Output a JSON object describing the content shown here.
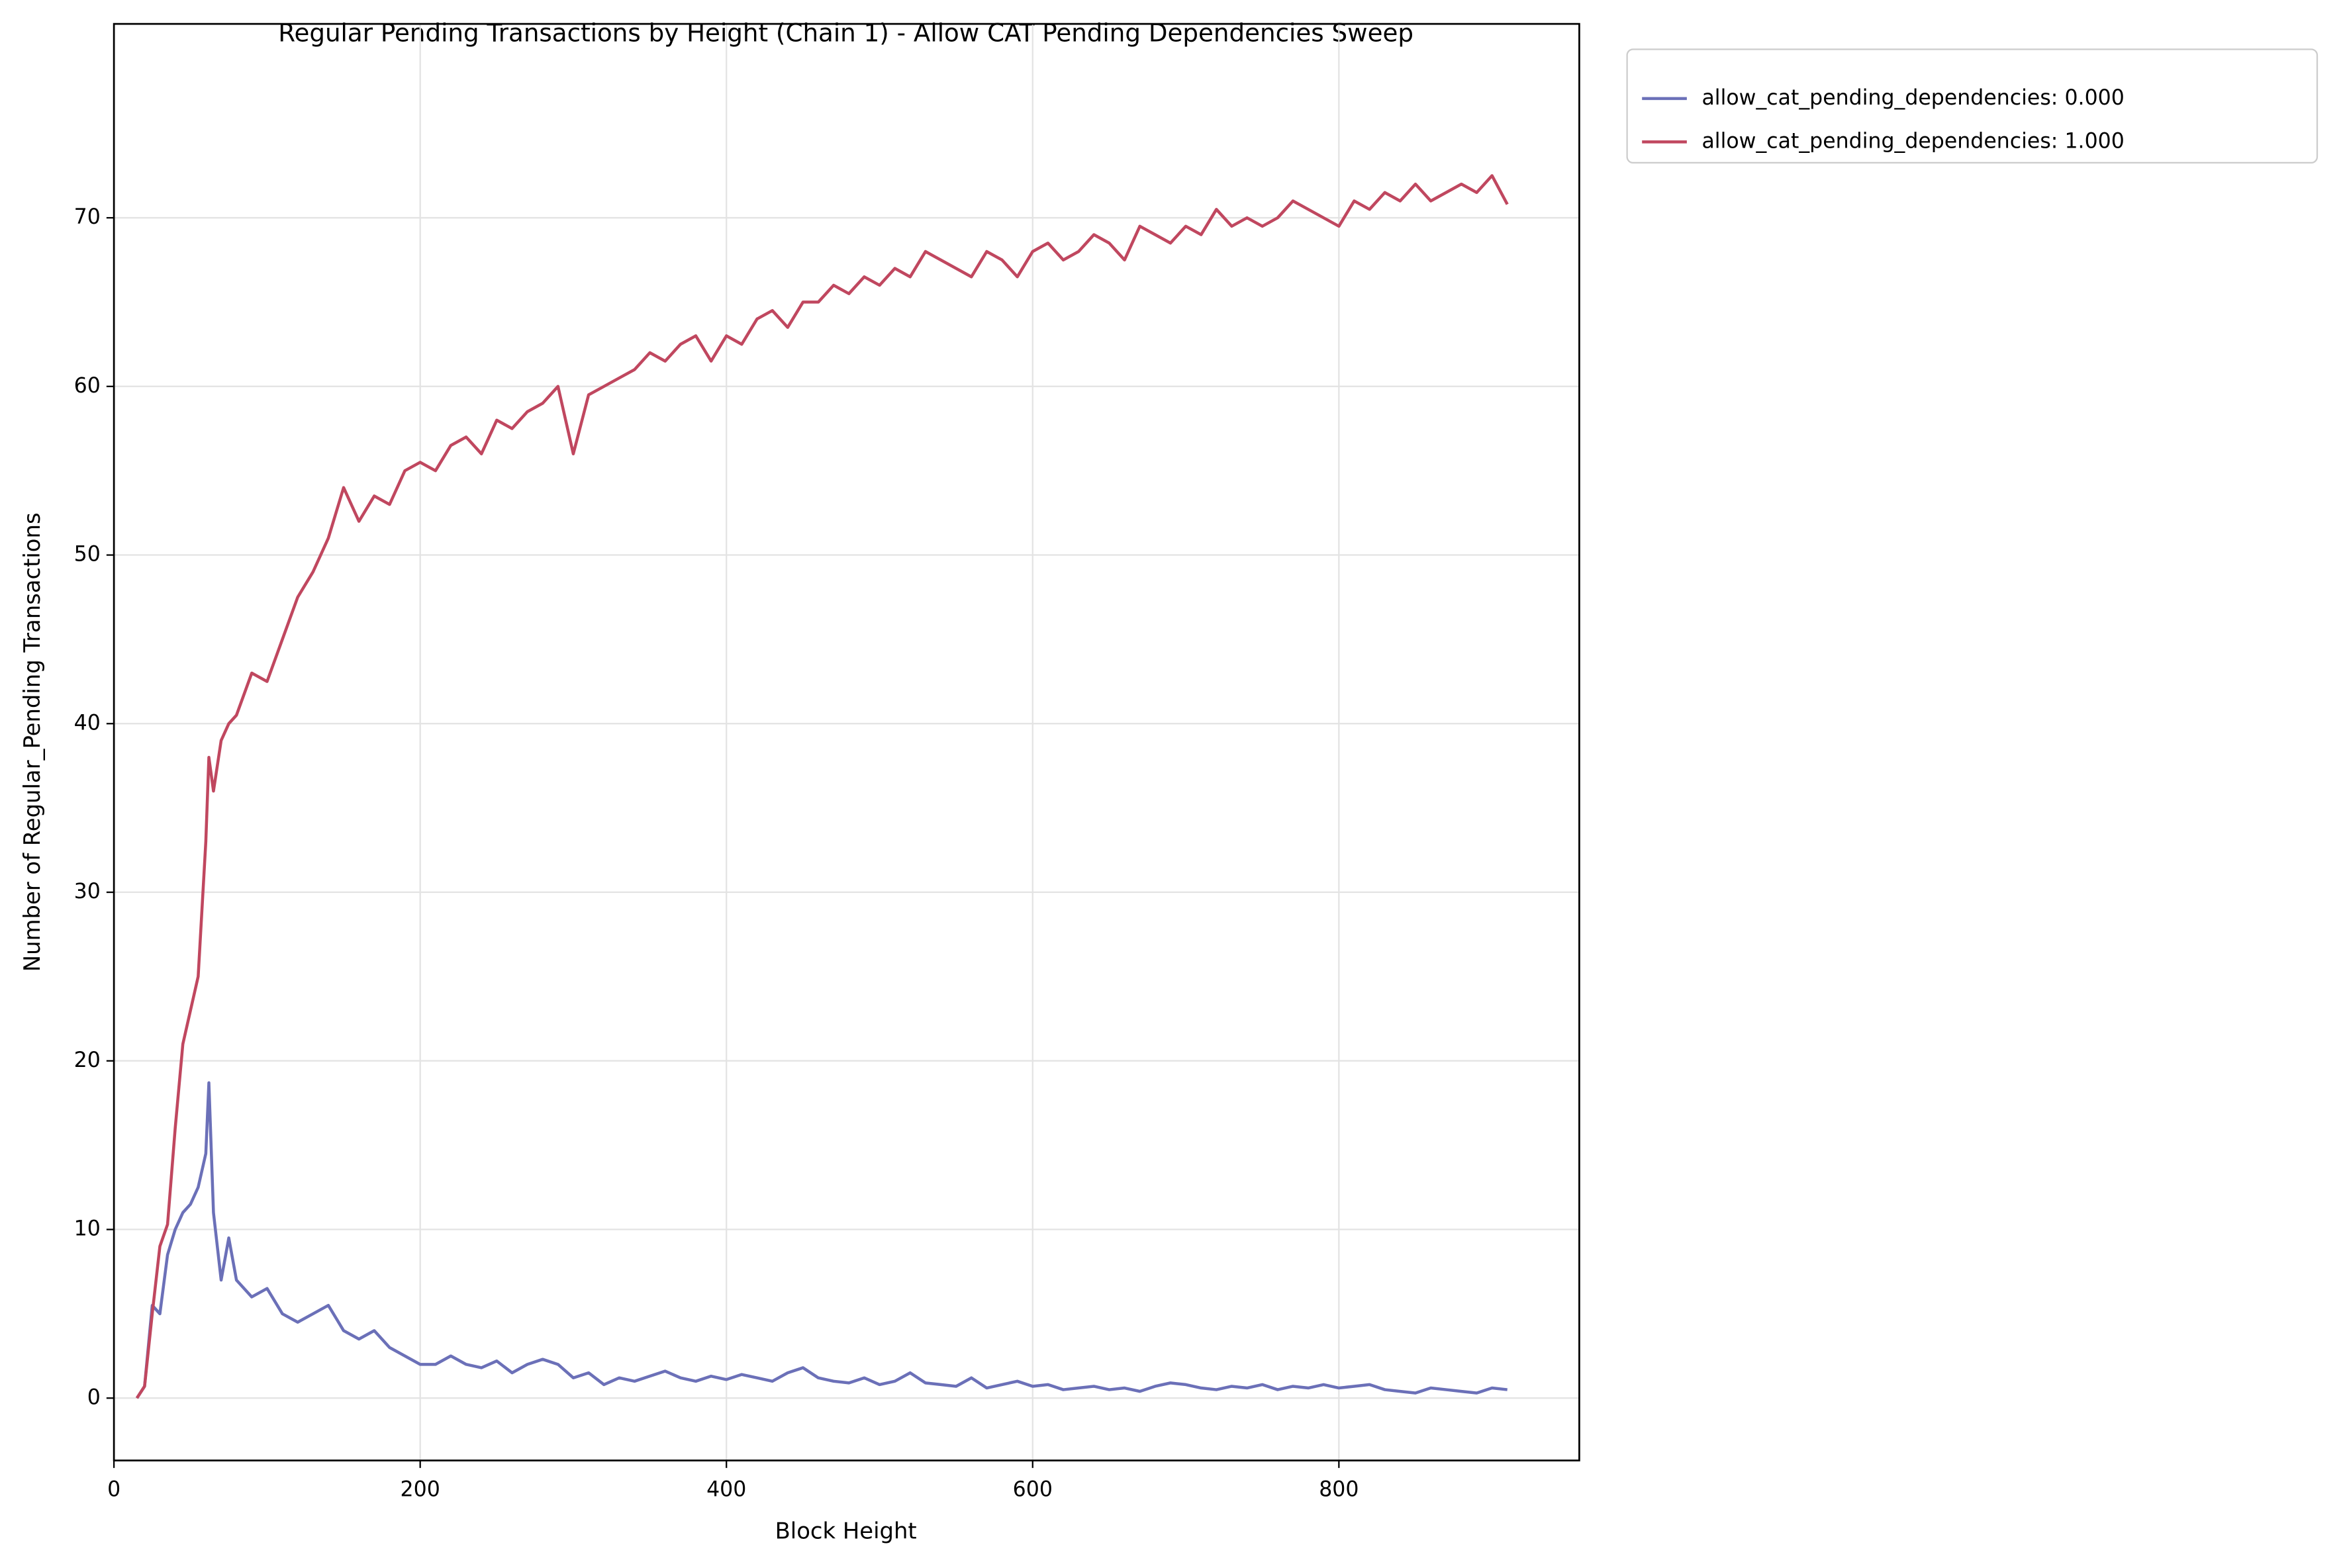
{
  "chart_data": {
    "type": "line",
    "title": "Regular Pending Transactions by Height (Chain 1) - Allow CAT Pending Dependencies Sweep",
    "x_label": "Block Height",
    "y_label": "Number of Regular_Pending Transactions",
    "x": [
      15,
      20,
      25,
      30,
      35,
      40,
      45,
      50,
      55,
      60,
      62,
      65,
      70,
      75,
      80,
      90,
      100,
      110,
      120,
      130,
      140,
      150,
      160,
      170,
      180,
      190,
      200,
      210,
      220,
      230,
      240,
      250,
      260,
      270,
      280,
      290,
      300,
      310,
      320,
      330,
      340,
      350,
      360,
      370,
      380,
      390,
      400,
      410,
      420,
      430,
      440,
      450,
      460,
      470,
      480,
      490,
      500,
      510,
      520,
      530,
      540,
      550,
      560,
      570,
      580,
      590,
      600,
      610,
      620,
      630,
      640,
      650,
      660,
      670,
      680,
      690,
      700,
      710,
      720,
      730,
      740,
      750,
      760,
      770,
      780,
      790,
      800,
      810,
      820,
      830,
      840,
      850,
      860,
      870,
      880,
      890,
      900,
      910
    ],
    "series": [
      {
        "name": "allow_cat_pending_dependencies: 0.000",
        "color": "#6b70b8",
        "values": [
          0,
          0.7,
          5.5,
          5,
          8.5,
          10,
          11,
          11.5,
          12.5,
          14.5,
          18.7,
          11,
          7,
          9.5,
          7,
          6,
          6.5,
          5,
          4.5,
          5,
          5.5,
          4,
          3.5,
          4,
          3,
          2.5,
          2,
          2,
          2.5,
          2,
          1.8,
          2.2,
          1.5,
          2,
          2.3,
          2,
          1.2,
          1.5,
          0.8,
          1.2,
          1,
          1.3,
          1.6,
          1.2,
          1,
          1.3,
          1.1,
          1.4,
          1.2,
          1,
          1.5,
          1.8,
          1.2,
          1,
          0.9,
          1.2,
          0.8,
          1,
          1.5,
          0.9,
          0.8,
          0.7,
          1.2,
          0.6,
          0.8,
          1,
          0.7,
          0.8,
          0.5,
          0.6,
          0.7,
          0.5,
          0.6,
          0.4,
          0.7,
          0.9,
          0.8,
          0.6,
          0.5,
          0.7,
          0.6,
          0.8,
          0.5,
          0.7,
          0.6,
          0.8,
          0.6,
          0.7,
          0.8,
          0.5,
          0.4,
          0.3,
          0.6,
          0.5,
          0.4,
          0.3,
          0.6,
          0.5
        ]
      },
      {
        "name": "allow_cat_pending_dependencies: 1.000",
        "color": "#c0475f",
        "values": [
          0,
          0.7,
          5,
          9,
          10.3,
          16,
          21,
          23,
          25,
          33,
          38,
          36,
          39,
          40,
          40.5,
          43,
          42.5,
          45,
          47.5,
          49,
          51,
          54,
          52,
          53.5,
          53,
          55,
          55.5,
          55,
          56.5,
          57,
          56,
          58,
          57.5,
          58.5,
          59,
          60,
          56,
          59.5,
          60,
          60.5,
          61,
          62,
          61.5,
          62.5,
          63,
          61.5,
          63,
          62.5,
          64,
          64.5,
          63.5,
          65,
          65,
          66,
          65.5,
          66.5,
          66,
          67,
          66.5,
          68,
          67.5,
          67,
          66.5,
          68,
          67.5,
          66.5,
          68,
          68.5,
          67.5,
          68,
          69,
          68.5,
          67.5,
          69.5,
          69,
          68.5,
          69.5,
          69,
          70.5,
          69.5,
          70,
          69.5,
          70,
          71,
          70.5,
          70,
          69.5,
          71,
          70.5,
          71.5,
          71,
          72,
          71,
          71.5,
          72,
          71.5,
          72.5,
          70.8
        ]
      }
    ],
    "xlim": [
      0,
      957
    ],
    "ylim": [
      -3.7,
      81.5
    ],
    "xticks": [
      0,
      200,
      400,
      600,
      800
    ],
    "yticks": [
      0,
      10,
      20,
      30,
      40,
      50,
      60,
      70
    ],
    "grid": true,
    "legend": "outside-upper-right"
  }
}
